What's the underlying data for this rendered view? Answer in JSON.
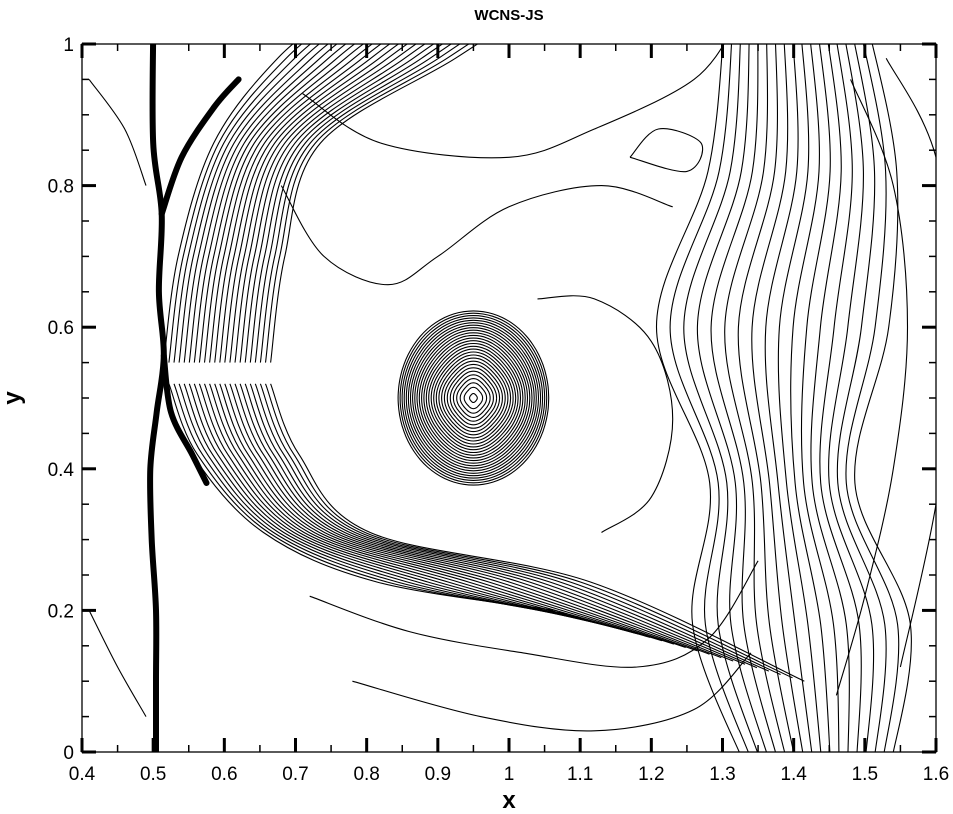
{
  "chart_data": {
    "type": "contour",
    "title": "WCNS-JS",
    "xlabel": "x",
    "ylabel": "y",
    "xlim": [
      0.4,
      1.6
    ],
    "ylim": [
      0,
      1
    ],
    "xticks": [
      "0.4",
      "0.5",
      "0.6",
      "0.7",
      "0.8",
      "0.9",
      "1",
      "1.1",
      "1.2",
      "1.3",
      "1.4",
      "1.5",
      "1.6"
    ],
    "yticks": [
      "0",
      "0.2",
      "0.4",
      "0.6",
      "0.8",
      "1"
    ],
    "grid": false,
    "features": {
      "stationary_shock_x": 0.5,
      "vortex_center": [
        0.95,
        0.5
      ],
      "vortex_ring_count": 28,
      "curved_wave_front_x_range": [
        0.52,
        0.66
      ],
      "secondary_front_x": 1.42
    }
  }
}
